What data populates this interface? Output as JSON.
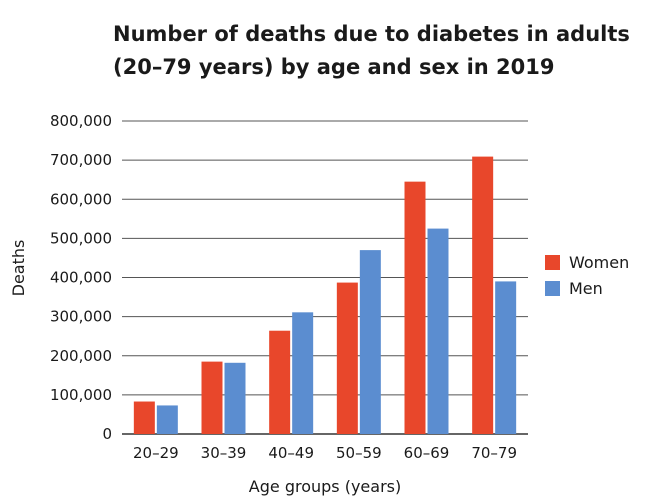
{
  "chart_data": {
    "type": "bar",
    "title": "Number of deaths due to diabetes in adults (20–79 years) by age and sex in 2019",
    "xlabel": "Age groups (years)",
    "ylabel": "Deaths",
    "categories": [
      "20–29",
      "30–39",
      "40–49",
      "50–59",
      "60–69",
      "70–79"
    ],
    "series": [
      {
        "name": "Women",
        "color": "#e8472b",
        "values": [
          83000,
          185000,
          264000,
          387000,
          645000,
          709000
        ]
      },
      {
        "name": "Men",
        "color": "#5b8dd0",
        "values": [
          73000,
          182000,
          311000,
          470000,
          525000,
          390000
        ]
      }
    ],
    "ylim": [
      0,
      800000
    ],
    "yticks": [
      0,
      100000,
      200000,
      300000,
      400000,
      500000,
      600000,
      700000,
      800000
    ],
    "ytick_labels": [
      "0",
      "100,000",
      "200,000",
      "300,000",
      "400,000",
      "500,000",
      "600,000",
      "700,000",
      "800,000"
    ],
    "grid": true,
    "legend_position": "right"
  }
}
